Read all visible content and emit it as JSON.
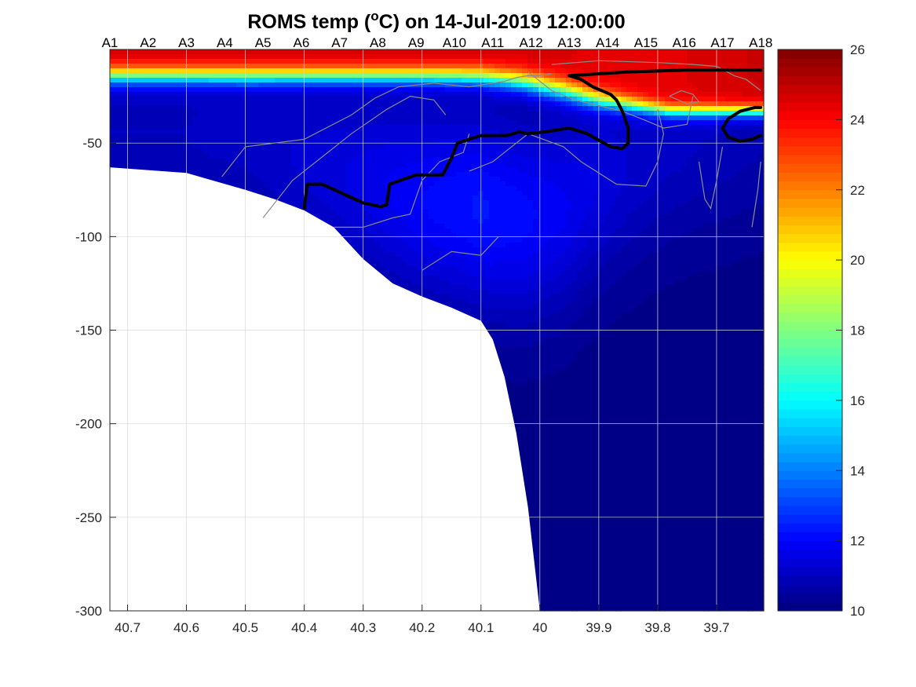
{
  "title": {
    "prefix": "ROMS temp (",
    "superscript": "o",
    "unit_suffix": "C) on 14-Jul-2019 12:00:00"
  },
  "colors": {
    "background": "#ffffff",
    "axis": "#262626",
    "grid": "#d9d9d9",
    "land": "#ffffff",
    "isotherm_bold": "#000000",
    "contour_thin": "#8c8c8c"
  },
  "chart_data": {
    "type": "heatmap",
    "colormap": "jet",
    "xlabel": "",
    "ylabel": "",
    "xlim": [
      40.73,
      39.62
    ],
    "x_reversed": true,
    "ylim": [
      -300,
      0
    ],
    "x_ticks": [
      40.7,
      40.6,
      40.5,
      40.4,
      40.3,
      40.2,
      40.1,
      40,
      39.9,
      39.8,
      39.7
    ],
    "x_tick_labels": [
      "40.7",
      "40.6",
      "40.5",
      "40.4",
      "40.3",
      "40.2",
      "40.1",
      "40",
      "39.9",
      "39.8",
      "39.7"
    ],
    "y_ticks": [
      -50,
      -100,
      -150,
      -200,
      -250,
      -300
    ],
    "y_tick_labels": [
      "-50",
      "-100",
      "-150",
      "-200",
      "-250",
      "-300"
    ],
    "grid": true,
    "stations": {
      "labels": [
        "A1",
        "A2",
        "A3",
        "A4",
        "A5",
        "A6",
        "A7",
        "A8",
        "A9",
        "A10",
        "A11",
        "A12",
        "A13",
        "A14",
        "A15",
        "A16",
        "A17",
        "A18"
      ],
      "positions": [
        40.73,
        40.665,
        40.6,
        40.535,
        40.47,
        40.405,
        40.34,
        40.275,
        40.21,
        40.145,
        40.08,
        40.015,
        39.95,
        39.885,
        39.82,
        39.755,
        39.69,
        39.625
      ]
    },
    "colorbar": {
      "range": [
        10,
        26
      ],
      "ticks": [
        10,
        12,
        14,
        16,
        18,
        20,
        22,
        24,
        26
      ],
      "tick_labels": [
        "10",
        "12",
        "14",
        "16",
        "18",
        "20",
        "22",
        "24",
        "26"
      ],
      "levels": 64,
      "location": "right"
    },
    "bathymetry": {
      "x": [
        40.73,
        40.6,
        40.5,
        40.45,
        40.4,
        40.35,
        40.3,
        40.25,
        40.2,
        40.15,
        40.1,
        40.08,
        40.06,
        40.04,
        40.02,
        40.0
      ],
      "depth": [
        -63,
        -66,
        -75,
        -80,
        -86,
        -95,
        -112,
        -125,
        -132,
        -138,
        -145,
        -155,
        -175,
        -205,
        -245,
        -300
      ]
    },
    "temperature_profiles": {
      "x": [
        40.73,
        40.6,
        40.5,
        40.4,
        40.3,
        40.2,
        40.1,
        40.03,
        39.96,
        39.9,
        39.84,
        39.78,
        39.72,
        39.62
      ],
      "mixed_layer_top": [
        24.8,
        24.8,
        24.8,
        24.8,
        24.8,
        24.8,
        24.8,
        24.8,
        24.6,
        24.4,
        24.4,
        24.4,
        24.6,
        24.8
      ],
      "mixed_layer_depth": [
        7,
        7,
        7,
        7,
        7,
        7,
        7,
        9,
        14,
        20,
        24,
        28,
        28,
        28
      ],
      "thermocline_width": [
        14,
        14,
        14,
        14,
        14,
        14,
        15,
        16,
        16,
        14,
        12,
        10,
        10,
        10
      ],
      "interior_temp": [
        11.0,
        11.0,
        11.1,
        11.3,
        11.6,
        12.0,
        12.3,
        12.1,
        11.8,
        11.5,
        11.2,
        11.1,
        11.0,
        10.8
      ],
      "interior_core_depth": [
        45,
        45,
        45,
        60,
        70,
        80,
        85,
        90,
        85,
        70,
        60,
        50,
        45,
        40
      ],
      "deep_temp": 10.1
    },
    "isotherm_bold": {
      "label": "",
      "segments": [
        {
          "x": [
            40.4,
            40.395,
            40.37,
            40.3,
            40.27,
            40.26,
            40.255,
            40.21,
            40.165,
            40.15,
            40.14,
            40.1,
            40.055,
            40.035,
            40.02,
            39.99,
            39.95,
            39.92,
            39.88,
            39.86,
            39.85,
            39.85,
            39.86,
            39.87,
            39.88,
            39.91,
            39.93,
            39.95
          ],
          "y": [
            -85,
            -72,
            -72,
            -82,
            -84,
            -83,
            -72,
            -67,
            -67,
            -58,
            -50,
            -46,
            -46,
            -44,
            -45,
            -44,
            -42,
            -45,
            -52,
            -53,
            -50,
            -42,
            -33,
            -27,
            -24,
            -20,
            -16,
            -14
          ]
        },
        {
          "x": [
            39.95,
            39.85,
            39.75,
            39.65,
            39.625
          ],
          "y": [
            -14,
            -12,
            -11,
            -11,
            -11
          ]
        },
        {
          "x": [
            39.625,
            39.635,
            39.66,
            39.68,
            39.69,
            39.68,
            39.66,
            39.64,
            39.625
          ],
          "y": [
            -31,
            -31,
            -33,
            -37,
            -42,
            -47,
            -49,
            -48,
            -46
          ]
        }
      ]
    },
    "contours_thin": [
      {
        "x": [
          40.54,
          40.5,
          40.4,
          40.32,
          40.28,
          40.24,
          40.18,
          40.12,
          40.06,
          40.04,
          40.02,
          40.0,
          39.98
        ],
        "y": [
          -68,
          -52,
          -48,
          -35,
          -26,
          -20,
          -18,
          -20,
          -17,
          -15,
          -14,
          -14,
          -13
        ]
      },
      {
        "x": [
          40.47,
          40.42,
          40.36,
          40.32,
          40.26,
          40.22,
          40.18,
          40.16
        ],
        "y": [
          -90,
          -70,
          -55,
          -45,
          -32,
          -25,
          -27,
          -35
        ]
      },
      {
        "x": [
          40.35,
          40.3,
          40.25,
          40.22,
          40.2,
          40.17,
          40.13,
          40.12
        ],
        "y": [
          -95,
          -95,
          -90,
          -88,
          -70,
          -60,
          -55,
          -45
        ]
      },
      {
        "x": [
          40.2,
          40.15,
          40.1,
          40.07
        ],
        "y": [
          -118,
          -108,
          -110,
          -100
        ]
      },
      {
        "x": [
          40.12,
          40.08,
          40.02,
          39.96,
          39.93,
          39.87,
          39.82,
          39.8,
          39.79,
          39.8
        ],
        "y": [
          -65,
          -60,
          -45,
          -52,
          -60,
          -72,
          -73,
          -60,
          -45,
          -32
        ]
      },
      {
        "x": [
          40.02,
          39.98,
          39.94,
          39.9,
          39.86,
          39.82,
          39.79,
          39.75,
          39.74
        ],
        "y": [
          -12,
          -22,
          -27,
          -30,
          -33,
          -38,
          -42,
          -40,
          -25
        ]
      },
      {
        "x": [
          39.98,
          39.9,
          39.8,
          39.74,
          39.7,
          39.67,
          39.65,
          39.625
        ],
        "y": [
          -8,
          -6,
          -7,
          -8,
          -9,
          -14,
          -16,
          -22
        ]
      },
      {
        "x": [
          39.78,
          39.76,
          39.74,
          39.73,
          39.75,
          39.78
        ],
        "y": [
          -25,
          -22,
          -24,
          -28,
          -29,
          -25
        ]
      },
      {
        "x": [
          39.73,
          39.72,
          39.71,
          39.7,
          39.69
        ],
        "y": [
          -60,
          -80,
          -85,
          -70,
          -52
        ]
      },
      {
        "x": [
          39.64,
          39.63,
          39.625
        ],
        "y": [
          -95,
          -75,
          -60
        ]
      }
    ]
  }
}
